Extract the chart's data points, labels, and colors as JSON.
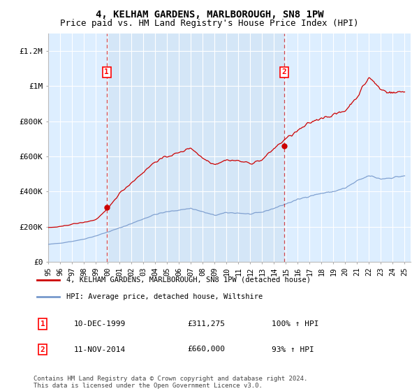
{
  "title": "4, KELHAM GARDENS, MARLBOROUGH, SN8 1PW",
  "subtitle": "Price paid vs. HM Land Registry's House Price Index (HPI)",
  "title_fontsize": 10,
  "subtitle_fontsize": 9,
  "bg_color": "#ddeeff",
  "bg_color_between": "#cce0f0",
  "grid_color": "#ffffff",
  "line1_color": "#cc0000",
  "line2_color": "#7799cc",
  "ylim": [
    0,
    1300000
  ],
  "yticks": [
    0,
    200000,
    400000,
    600000,
    800000,
    1000000,
    1200000
  ],
  "ytick_labels": [
    "£0",
    "£200K",
    "£400K",
    "£600K",
    "£800K",
    "£1M",
    "£1.2M"
  ],
  "purchase1_year_f": 1999.92,
  "purchase1_price": 311275,
  "purchase1_label": "1",
  "purchase2_year_f": 2014.87,
  "purchase2_price": 660000,
  "purchase2_label": "2",
  "legend_line1": "4, KELHAM GARDENS, MARLBOROUGH, SN8 1PW (detached house)",
  "legend_line2": "HPI: Average price, detached house, Wiltshire",
  "table_row1": [
    "1",
    "10-DEC-1999",
    "£311,275",
    "100% ↑ HPI"
  ],
  "table_row2": [
    "2",
    "11-NOV-2014",
    "£660,000",
    "93% ↑ HPI"
  ],
  "footer": "Contains HM Land Registry data © Crown copyright and database right 2024.\nThis data is licensed under the Open Government Licence v3.0."
}
